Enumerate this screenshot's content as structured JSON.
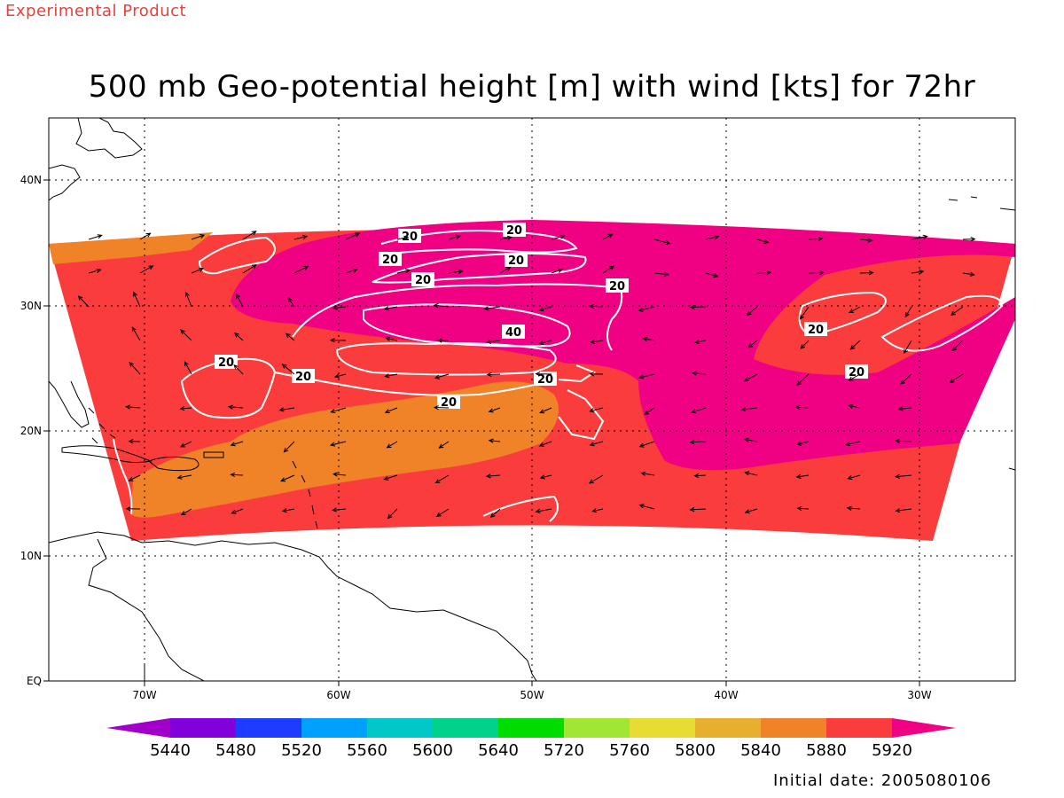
{
  "header": {
    "experimental_label": "Experimental Product",
    "title": "500 mb Geo-potential height [m] with wind [kts] for 72hr"
  },
  "footer": {
    "initial_date": "Initial date: 2005080106"
  },
  "map": {
    "lon_ticks": [
      "70W",
      "60W",
      "50W",
      "40W",
      "30W"
    ],
    "lat_ticks": [
      "EQ",
      "10N",
      "20N",
      "30N",
      "40N"
    ],
    "contour_labels": [
      "20",
      "20",
      "20",
      "20",
      "20",
      "40",
      "20",
      "20",
      "20",
      "20",
      "20",
      "20",
      "20"
    ]
  },
  "colorbar": {
    "labels": [
      "5440",
      "5480",
      "5520",
      "5560",
      "5600",
      "5640",
      "5720",
      "5760",
      "5800",
      "5840",
      "5880",
      "5920"
    ],
    "colors": [
      "#a000c8",
      "#8200dc",
      "#1e3cff",
      "#00a0ff",
      "#00c8c8",
      "#00d28c",
      "#00dc00",
      "#a0e632",
      "#e6dc32",
      "#e6af2d",
      "#f08228",
      "#fa3c3c",
      "#f00082"
    ]
  },
  "colors": {
    "field_5880": "#f08228",
    "field_5920": "#fa3c3c",
    "field_above": "#f00082",
    "contour": "#ffffff",
    "experimental_text": "#e8413c"
  }
}
